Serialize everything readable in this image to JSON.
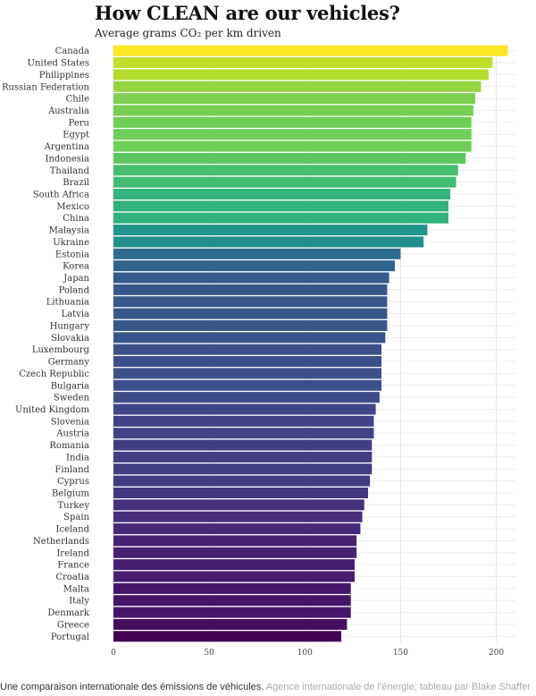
{
  "chart_data": {
    "type": "bar",
    "orientation": "horizontal",
    "title": "How CLEAN are our vehicles?",
    "subtitle": "Average grams CO₂ per km driven",
    "categories": [
      "Canada",
      "United States",
      "Philippines",
      "Russian Federation",
      "Chile",
      "Australia",
      "Peru",
      "Egypt",
      "Argentina",
      "Indonesia",
      "Thailand",
      "Brazil",
      "South Africa",
      "Mexico",
      "China",
      "Malaysia",
      "Ukraine",
      "Estonia",
      "Korea",
      "Japan",
      "Poland",
      "Lithuania",
      "Latvia",
      "Hungary",
      "Slovakia",
      "Luxembourg",
      "Germany",
      "Czech Republic",
      "Bulgaria",
      "Sweden",
      "United Kingdom",
      "Slovenia",
      "Austria",
      "Romania",
      "India",
      "Finland",
      "Cyprus",
      "Belgium",
      "Turkey",
      "Spain",
      "Iceland",
      "Netherlands",
      "Ireland",
      "France",
      "Croatia",
      "Malta",
      "Italy",
      "Denmark",
      "Greece",
      "Portugal"
    ],
    "values": [
      206,
      198,
      196,
      192,
      189,
      188,
      187,
      187,
      187,
      184,
      180,
      179,
      176,
      175,
      175,
      164,
      162,
      150,
      147,
      144,
      143,
      143,
      143,
      143,
      142,
      140,
      140,
      140,
      140,
      139,
      137,
      136,
      136,
      135,
      135,
      135,
      134,
      133,
      131,
      130,
      129,
      127,
      127,
      126,
      126,
      124,
      124,
      124,
      122,
      119
    ],
    "xlim": [
      0,
      210
    ],
    "xticks": [
      0,
      50,
      100,
      150,
      200
    ],
    "grid": true,
    "color_scale": "viridis"
  },
  "footer": {
    "main": "Une comparaison internationale des émissions de véhicules.",
    "source": "Agence internationale de l'énergie; tableau par Blake Shaffer"
  }
}
